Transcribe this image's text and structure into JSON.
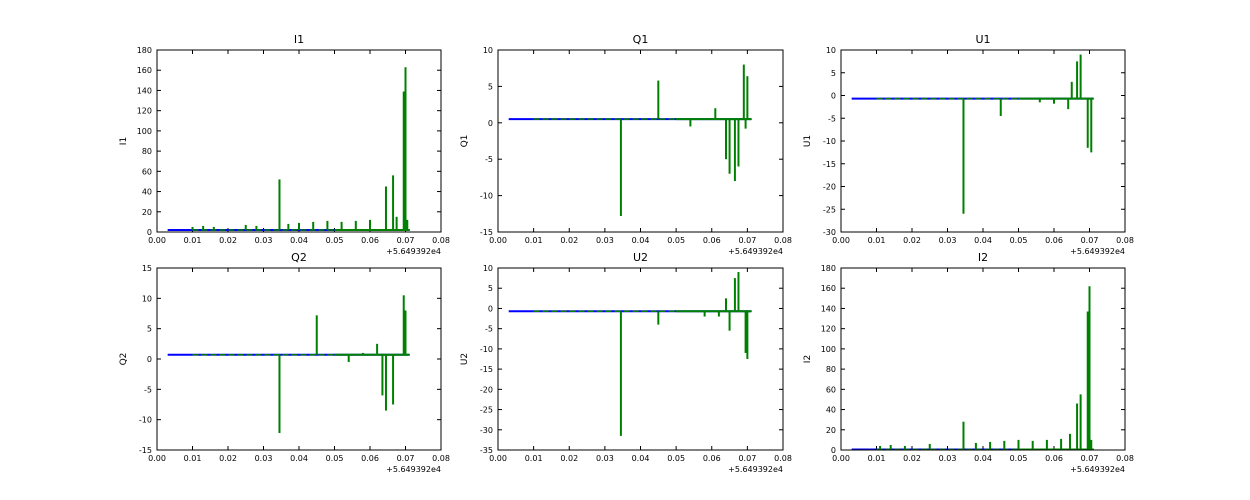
{
  "figure": {
    "background": "#ffffff",
    "colors": {
      "baseline": "#0000ff",
      "trace": "#008000",
      "axes": "#000000"
    }
  },
  "chart_data": [
    {
      "type": "line",
      "title": "I1",
      "ylabel": "I1",
      "xlabel": "",
      "xlim": [
        0.0,
        0.08
      ],
      "ylim": [
        0,
        180
      ],
      "xticks": [
        "0.00",
        "0.01",
        "0.02",
        "0.03",
        "0.04",
        "0.05",
        "0.06",
        "0.07",
        "0.08"
      ],
      "yticks": [
        "0",
        "20",
        "40",
        "60",
        "80",
        "100",
        "120",
        "140",
        "160",
        "180"
      ],
      "x_offset": "+5.649392e4",
      "baseline": 2,
      "series": [
        {
          "name": "blue",
          "x_range": [
            0.003,
            0.071
          ],
          "values_level": 2
        },
        {
          "name": "green",
          "x": [
            0.01,
            0.013,
            0.016,
            0.025,
            0.028,
            0.0345,
            0.037,
            0.04,
            0.044,
            0.048,
            0.052,
            0.056,
            0.06,
            0.0645,
            0.0665,
            0.0675,
            0.0695,
            0.07,
            0.0705
          ],
          "y": [
            5,
            6,
            5,
            7,
            6,
            52,
            8,
            9,
            10,
            11,
            10,
            11,
            12,
            45,
            56,
            15,
            139,
            163,
            12
          ]
        }
      ]
    },
    {
      "type": "line",
      "title": "Q1",
      "ylabel": "Q1",
      "xlabel": "",
      "xlim": [
        0.0,
        0.08
      ],
      "ylim": [
        -15,
        10
      ],
      "xticks": [
        "0.00",
        "0.01",
        "0.02",
        "0.03",
        "0.04",
        "0.05",
        "0.06",
        "0.07",
        "0.08"
      ],
      "yticks": [
        "-15",
        "-10",
        "-5",
        "0",
        "5",
        "10"
      ],
      "x_offset": "+5.649392e4",
      "baseline": 0.5,
      "series": [
        {
          "name": "blue",
          "x_range": [
            0.003,
            0.071
          ],
          "values_level": 0.5
        },
        {
          "name": "green",
          "x": [
            0.0345,
            0.045,
            0.054,
            0.061,
            0.064,
            0.065,
            0.0665,
            0.0675,
            0.069,
            0.0695,
            0.07
          ],
          "y": [
            -12.8,
            5.8,
            -0.5,
            2,
            -5,
            -7,
            -8,
            -6,
            8,
            -0.8,
            6.4
          ]
        }
      ]
    },
    {
      "type": "line",
      "title": "U1",
      "ylabel": "U1",
      "xlabel": "",
      "xlim": [
        0.0,
        0.08
      ],
      "ylim": [
        -30,
        10
      ],
      "xticks": [
        "0.00",
        "0.01",
        "0.02",
        "0.03",
        "0.04",
        "0.05",
        "0.06",
        "0.07",
        "0.08"
      ],
      "yticks": [
        "-30",
        "-25",
        "-20",
        "-15",
        "-10",
        "-5",
        "0",
        "5",
        "10"
      ],
      "x_offset": "+5.649392e4",
      "baseline": -0.7,
      "series": [
        {
          "name": "blue",
          "x_range": [
            0.003,
            0.071
          ],
          "values_level": -0.7
        },
        {
          "name": "green",
          "x": [
            0.0345,
            0.045,
            0.056,
            0.06,
            0.064,
            0.065,
            0.0665,
            0.0675,
            0.0695,
            0.0705
          ],
          "y": [
            -26,
            -4.5,
            -1.5,
            -1.8,
            -3,
            3,
            7.5,
            9,
            -11.5,
            -12.5
          ]
        }
      ]
    },
    {
      "type": "line",
      "title": "Q2",
      "ylabel": "Q2",
      "xlabel": "",
      "xlim": [
        0.0,
        0.08
      ],
      "ylim": [
        -15,
        15
      ],
      "xticks": [
        "0.00",
        "0.01",
        "0.02",
        "0.03",
        "0.04",
        "0.05",
        "0.06",
        "0.07",
        "0.08"
      ],
      "yticks": [
        "-15",
        "-10",
        "-5",
        "0",
        "5",
        "10",
        "15"
      ],
      "x_offset": "+5.649392e4",
      "baseline": 0.7,
      "series": [
        {
          "name": "blue",
          "x_range": [
            0.003,
            0.071
          ],
          "values_level": 0.7
        },
        {
          "name": "green",
          "x": [
            0.0345,
            0.045,
            0.054,
            0.058,
            0.062,
            0.0635,
            0.0645,
            0.0665,
            0.0695,
            0.07
          ],
          "y": [
            -12.2,
            7.2,
            -0.5,
            1,
            2.5,
            -6,
            -8.5,
            -7.5,
            10.5,
            8
          ]
        }
      ]
    },
    {
      "type": "line",
      "title": "U2",
      "ylabel": "U2",
      "xlabel": "",
      "xlim": [
        0.0,
        0.08
      ],
      "ylim": [
        -35,
        10
      ],
      "xticks": [
        "0.00",
        "0.01",
        "0.02",
        "0.03",
        "0.04",
        "0.05",
        "0.06",
        "0.07",
        "0.08"
      ],
      "yticks": [
        "-35",
        "-30",
        "-25",
        "-20",
        "-15",
        "-10",
        "-5",
        "0",
        "5",
        "10"
      ],
      "x_offset": "+5.649392e4",
      "baseline": -0.7,
      "series": [
        {
          "name": "blue",
          "x_range": [
            0.003,
            0.071
          ],
          "values_level": -0.7
        },
        {
          "name": "green",
          "x": [
            0.0345,
            0.045,
            0.058,
            0.062,
            0.064,
            0.065,
            0.0665,
            0.0675,
            0.0695,
            0.07
          ],
          "y": [
            -31.5,
            -4,
            -2,
            -2,
            2.5,
            -5.5,
            7.5,
            9,
            -11,
            -12.5
          ]
        }
      ]
    },
    {
      "type": "line",
      "title": "I2",
      "ylabel": "I2",
      "xlabel": "",
      "xlim": [
        0.0,
        0.08
      ],
      "ylim": [
        0,
        180
      ],
      "xticks": [
        "0.00",
        "0.01",
        "0.02",
        "0.03",
        "0.04",
        "0.05",
        "0.06",
        "0.07",
        "0.08"
      ],
      "yticks": [
        "0",
        "20",
        "40",
        "60",
        "80",
        "100",
        "120",
        "140",
        "160",
        "180"
      ],
      "x_offset": "+5.649392e4",
      "baseline": 0.5,
      "series": [
        {
          "name": "blue",
          "x_range": [
            0.003,
            0.071
          ],
          "values_level": 0.5
        },
        {
          "name": "green",
          "x": [
            0.011,
            0.014,
            0.018,
            0.025,
            0.0345,
            0.038,
            0.042,
            0.046,
            0.05,
            0.054,
            0.058,
            0.062,
            0.0645,
            0.0665,
            0.0675,
            0.0695,
            0.07,
            0.0705
          ],
          "y": [
            4,
            5,
            4,
            6,
            28,
            7,
            8,
            9,
            10,
            9,
            10,
            11,
            16,
            46,
            55,
            137,
            162,
            10
          ]
        }
      ]
    }
  ]
}
